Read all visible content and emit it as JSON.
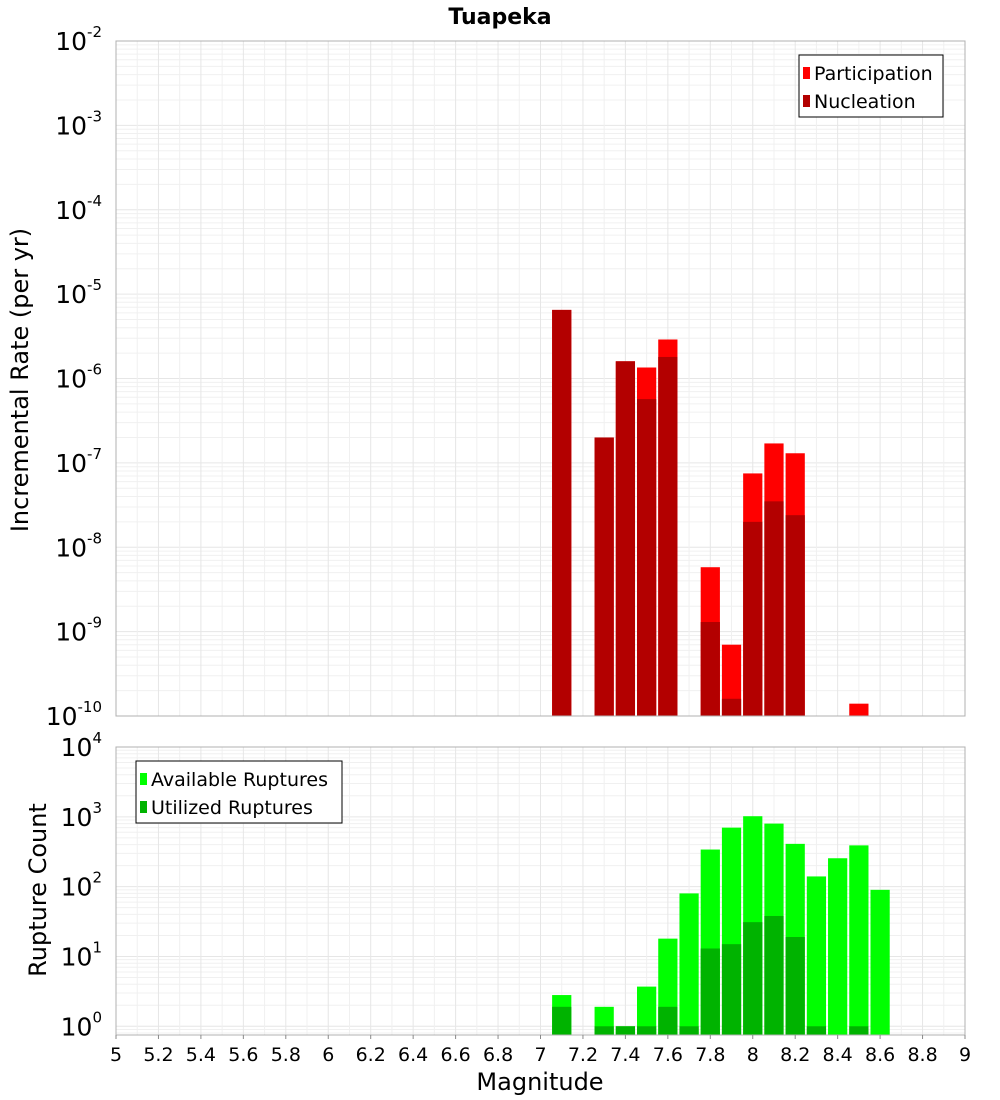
{
  "chart_data": [
    {
      "type": "bar",
      "title": "Tuapeka",
      "xlabel": "",
      "ylabel": "Incremental Rate (per yr)",
      "yscale": "log",
      "ylim": [
        1e-10,
        0.01
      ],
      "xlim": [
        5,
        9
      ],
      "bin_width": 0.1,
      "ytick_exponents": [
        "-10",
        "-9",
        "-8",
        "-7",
        "-6",
        "-5",
        "-4",
        "-3",
        "-2"
      ],
      "legend": {
        "position": "top-right",
        "entries": [
          {
            "name": "Participation",
            "color": "#ff0000"
          },
          {
            "name": "Nucleation",
            "color": "#b30000"
          }
        ]
      },
      "series": [
        {
          "name": "Participation",
          "color": "#ff0000",
          "x": [
            7.1,
            7.3,
            7.4,
            7.5,
            7.6,
            7.8,
            7.9,
            8.0,
            8.1,
            8.2,
            8.5
          ],
          "values": [
            6.5e-06,
            2e-07,
            1.6e-06,
            1.35e-06,
            2.9e-06,
            5.8e-09,
            7e-10,
            7.5e-08,
            1.7e-07,
            1.3e-07,
            1.4e-10
          ]
        },
        {
          "name": "Nucleation",
          "color": "#b30000",
          "x": [
            7.1,
            7.3,
            7.4,
            7.5,
            7.6,
            7.8,
            7.9,
            8.0,
            8.1,
            8.2
          ],
          "values": [
            6.5e-06,
            2e-07,
            1.6e-06,
            5.7e-07,
            1.8e-06,
            1.3e-09,
            1.6e-10,
            2e-08,
            3.5e-08,
            2.4e-08
          ]
        }
      ]
    },
    {
      "type": "bar",
      "title": "",
      "xlabel": "Magnitude",
      "ylabel": "Rupture Count",
      "yscale": "log",
      "ylim": [
        0.75,
        10000
      ],
      "xlim": [
        5,
        9
      ],
      "bin_width": 0.1,
      "ytick_exponents": [
        "0",
        "1",
        "2",
        "3",
        "4"
      ],
      "xticks": [
        "5",
        "5.2",
        "5.4",
        "5.6",
        "5.8",
        "6",
        "6.2",
        "6.4",
        "6.6",
        "6.8",
        "7",
        "7.2",
        "7.4",
        "7.6",
        "7.8",
        "8",
        "8.2",
        "8.4",
        "8.6",
        "8.8",
        "9"
      ],
      "legend": {
        "position": "top-left",
        "entries": [
          {
            "name": "Available Ruptures",
            "color": "#00ff00"
          },
          {
            "name": "Utilized Ruptures",
            "color": "#00b300"
          }
        ]
      },
      "series": [
        {
          "name": "Available Ruptures",
          "color": "#00ff00",
          "x": [
            7.1,
            7.3,
            7.4,
            7.5,
            7.6,
            7.7,
            7.8,
            7.9,
            8.0,
            8.1,
            8.2,
            8.3,
            8.4,
            8.5,
            8.6
          ],
          "values": [
            2.8,
            1.9,
            1,
            3.7,
            18,
            80,
            340,
            700,
            1020,
            800,
            410,
            140,
            255,
            390,
            90
          ]
        },
        {
          "name": "Utilized Ruptures",
          "color": "#00b300",
          "x": [
            7.1,
            7.3,
            7.4,
            7.5,
            7.6,
            7.7,
            7.8,
            7.9,
            8.0,
            8.1,
            8.2,
            8.3,
            8.5
          ],
          "values": [
            1.9,
            1,
            1,
            1,
            1.9,
            1,
            13,
            15,
            31,
            38,
            19,
            1,
            1
          ]
        }
      ]
    }
  ]
}
